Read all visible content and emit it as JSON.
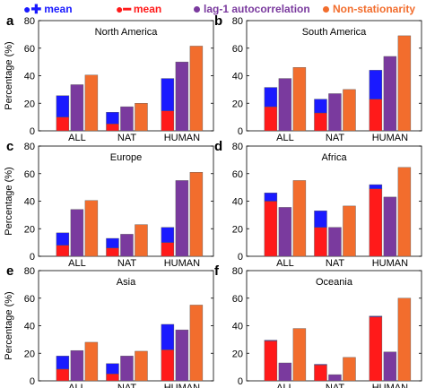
{
  "legend": {
    "items": [
      {
        "symbol": "●✚",
        "label": "mean",
        "color": "#1a1aff"
      },
      {
        "symbol": "●━",
        "label": "mean",
        "color": "#ff1a1a"
      },
      {
        "symbol": "●",
        "label": "lag-1 autocorrelation",
        "color": "#7a3a9e"
      },
      {
        "symbol": "●",
        "label": "Non-stationarity",
        "color": "#f26d2d"
      }
    ]
  },
  "colors": {
    "increase": "#1a1aff",
    "decrease": "#ff1a1a",
    "autocorr": "#7a3a9e",
    "nonstat": "#f26d2d"
  },
  "chart_data": [
    {
      "type": "bar",
      "panel_letter": "a",
      "title": "North America",
      "ylabel": "Percentage (%)",
      "ylim": [
        0,
        80
      ],
      "yticks": [
        0,
        20,
        40,
        60,
        80
      ],
      "categories": [
        "ALL",
        "NAT",
        "HUMAN"
      ],
      "series": [
        {
          "name": "+ mean",
          "values": [
            15.5,
            8.5,
            23.5
          ]
        },
        {
          "name": "− mean",
          "values": [
            10,
            5,
            14.5
          ]
        },
        {
          "name": "lag-1 autocorrelation",
          "values": [
            33.5,
            17.5,
            50
          ]
        },
        {
          "name": "Non-stationarity",
          "values": [
            40.5,
            20,
            61.5
          ]
        }
      ]
    },
    {
      "type": "bar",
      "panel_letter": "b",
      "title": "South America",
      "ylabel": "",
      "ylim": [
        0,
        80
      ],
      "yticks": [
        0,
        20,
        40,
        60,
        80
      ],
      "categories": [
        "ALL",
        "NAT",
        "HUMAN"
      ],
      "series": [
        {
          "name": "+ mean",
          "values": [
            14,
            10,
            21
          ]
        },
        {
          "name": "− mean",
          "values": [
            17.5,
            13,
            23
          ]
        },
        {
          "name": "lag-1 autocorrelation",
          "values": [
            38,
            27,
            54
          ]
        },
        {
          "name": "Non-stationarity",
          "values": [
            46,
            30,
            69
          ]
        }
      ]
    },
    {
      "type": "bar",
      "panel_letter": "c",
      "title": "Europe",
      "ylabel": "Percentage (%)",
      "ylim": [
        0,
        80
      ],
      "yticks": [
        0,
        20,
        40,
        60,
        80
      ],
      "categories": [
        "ALL",
        "NAT",
        "HUMAN"
      ],
      "series": [
        {
          "name": "+ mean",
          "values": [
            9,
            7,
            11
          ]
        },
        {
          "name": "− mean",
          "values": [
            8,
            6,
            10
          ]
        },
        {
          "name": "lag-1 autocorrelation",
          "values": [
            34,
            16,
            55
          ]
        },
        {
          "name": "Non-stationarity",
          "values": [
            40.5,
            23,
            61
          ]
        }
      ]
    },
    {
      "type": "bar",
      "panel_letter": "d",
      "title": "Africa",
      "ylabel": "",
      "ylim": [
        0,
        80
      ],
      "yticks": [
        0,
        20,
        40,
        60,
        80
      ],
      "categories": [
        "ALL",
        "NAT",
        "HUMAN"
      ],
      "series": [
        {
          "name": "+ mean",
          "values": [
            6,
            12,
            3
          ]
        },
        {
          "name": "− mean",
          "values": [
            40,
            21,
            49
          ]
        },
        {
          "name": "lag-1 autocorrelation",
          "values": [
            35.5,
            21,
            43
          ]
        },
        {
          "name": "Non-stationarity",
          "values": [
            55,
            36.5,
            64.5
          ]
        }
      ]
    },
    {
      "type": "bar",
      "panel_letter": "e",
      "title": "Asia",
      "ylabel": "Percentage (%)",
      "ylim": [
        0,
        80
      ],
      "yticks": [
        0,
        20,
        40,
        60,
        80
      ],
      "categories": [
        "ALL",
        "NAT",
        "HUMAN"
      ],
      "series": [
        {
          "name": "+ mean",
          "values": [
            9.5,
            7.5,
            18.5
          ]
        },
        {
          "name": "− mean",
          "values": [
            8.5,
            5,
            22.5
          ]
        },
        {
          "name": "lag-1 autocorrelation",
          "values": [
            22,
            18,
            37
          ]
        },
        {
          "name": "Non-stationarity",
          "values": [
            28,
            21.5,
            55
          ]
        }
      ]
    },
    {
      "type": "bar",
      "panel_letter": "f",
      "title": "Oceania",
      "ylabel": "",
      "ylim": [
        0,
        80
      ],
      "yticks": [
        0,
        20,
        40,
        60,
        80
      ],
      "categories": [
        "ALL",
        "NAT",
        "HUMAN"
      ],
      "series": [
        {
          "name": "+ mean",
          "values": [
            0.5,
            0.5,
            0.5
          ]
        },
        {
          "name": "− mean",
          "values": [
            29,
            11.5,
            46.5
          ]
        },
        {
          "name": "lag-1 autocorrelation",
          "values": [
            13,
            4.5,
            21
          ]
        },
        {
          "name": "Non-stationarity",
          "values": [
            38,
            17,
            60
          ]
        }
      ]
    }
  ]
}
